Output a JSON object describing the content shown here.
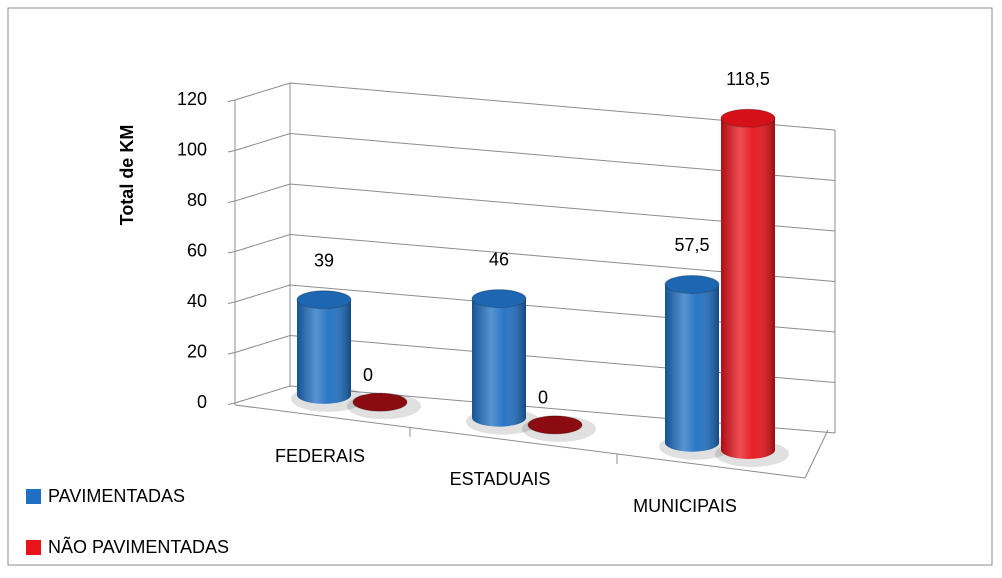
{
  "chart_data": {
    "type": "bar3d",
    "y_label": "Total de KM",
    "categories": [
      "FEDERAIS",
      "ESTADUAIS",
      "MUNICIPAIS"
    ],
    "series": [
      {
        "name": "PAVIMENTADAS",
        "color": "#1f6fc2",
        "values": [
          39,
          46,
          57.5
        ],
        "value_labels": [
          "39",
          "46",
          "57,5"
        ]
      },
      {
        "name": "NÃO PAVIMENTADAS",
        "color": "#e8131b",
        "values": [
          0,
          0,
          118.5
        ],
        "value_labels": [
          "0",
          "0",
          "118,5"
        ]
      }
    ],
    "ylim": [
      0,
      120
    ],
    "yticks": [
      0,
      20,
      40,
      60,
      80,
      100,
      120
    ],
    "grid": true,
    "legend": "bottom-left"
  }
}
